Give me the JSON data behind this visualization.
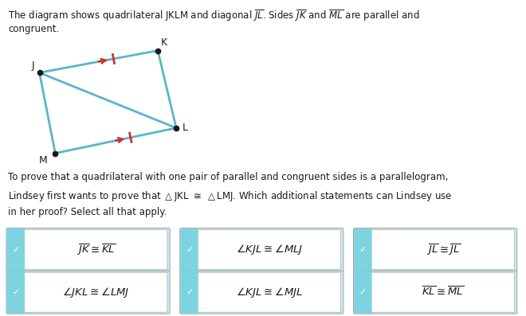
{
  "bg_color": "#e8e8e8",
  "white_color": "#ffffff",
  "text_color": "#1a1a1a",
  "quad_color": "#5ab4cc",
  "arrow_tick_color": "#cc3333",
  "check_color": "#7dd4e0",
  "box_bg_color": "#c8eaf0",
  "box_border_color": "#aaaaaa",
  "options": [
    {
      "text": "$\\overline{JK} \\cong \\overline{KL}$",
      "row": 0,
      "col": 0
    },
    {
      "text": "$\\angle KJL \\cong \\angle MLJ$",
      "row": 0,
      "col": 1
    },
    {
      "text": "$\\overline{JL} \\cong \\overline{JL}$",
      "row": 0,
      "col": 2
    },
    {
      "text": "$\\angle JKL \\cong \\angle LMJ$",
      "row": 1,
      "col": 0
    },
    {
      "text": "$\\angle KJL \\cong \\angle MJL$",
      "row": 1,
      "col": 1
    },
    {
      "text": "$\\overline{KL} \\cong \\overline{ML}$",
      "row": 1,
      "col": 2
    }
  ],
  "J": [
    0.075,
    0.77
  ],
  "K": [
    0.3,
    0.84
  ],
  "L": [
    0.335,
    0.595
  ],
  "M": [
    0.105,
    0.515
  ]
}
